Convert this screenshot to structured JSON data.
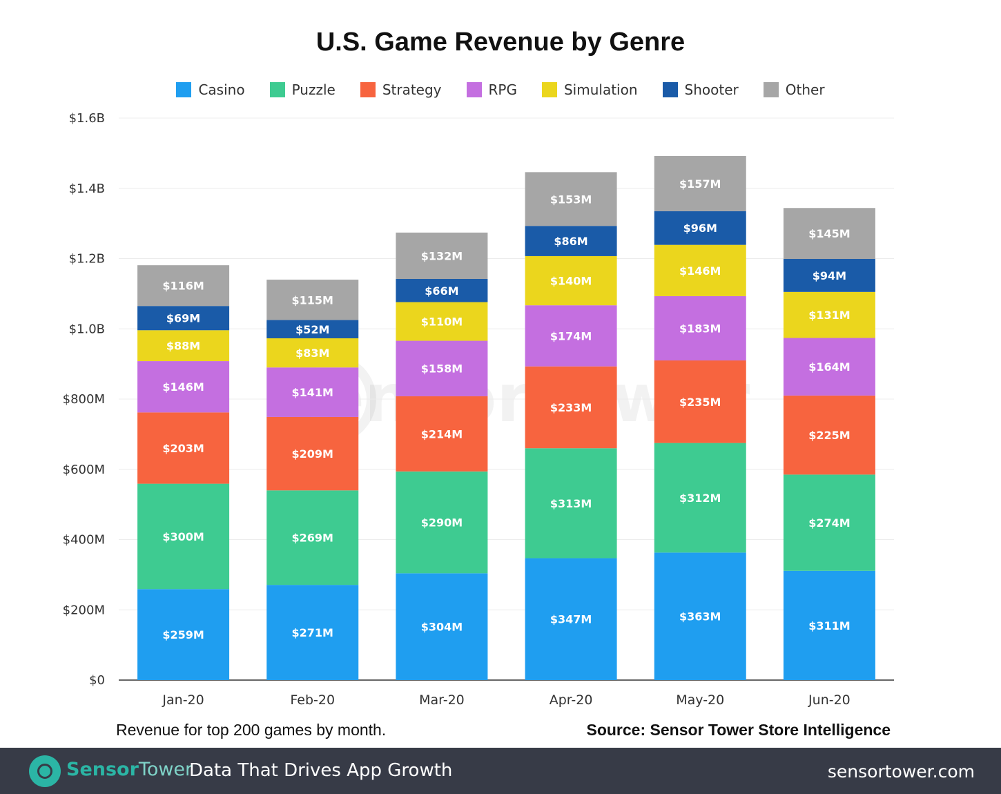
{
  "chart_data": {
    "type": "bar",
    "stacked": true,
    "title": "U.S. Game Revenue by Genre",
    "xlabel": "",
    "ylabel": "",
    "categories": [
      "Jan-20",
      "Feb-20",
      "Mar-20",
      "Apr-20",
      "May-20",
      "Jun-20"
    ],
    "ylim": [
      0,
      1600
    ],
    "y_unit": "$M",
    "yticks": [
      0,
      200,
      400,
      600,
      800,
      1000,
      1200,
      1400,
      1600
    ],
    "ytick_labels": [
      "$0",
      "$200M",
      "$400M",
      "$600M",
      "$800M",
      "$1.0B",
      "$1.2B",
      "$1.4B",
      "$1.6B"
    ],
    "grid": true,
    "legend_position": "top",
    "series": [
      {
        "name": "Casino",
        "color": "#1f9ef0",
        "values": [
          259,
          271,
          304,
          347,
          363,
          311
        ],
        "labels": [
          "$259M",
          "$271M",
          "$304M",
          "$347M",
          "$363M",
          "$311M"
        ]
      },
      {
        "name": "Puzzle",
        "color": "#3ecb91",
        "values": [
          300,
          269,
          290,
          313,
          312,
          274
        ],
        "labels": [
          "$300M",
          "$269M",
          "$290M",
          "$313M",
          "$312M",
          "$274M"
        ]
      },
      {
        "name": "Strategy",
        "color": "#f7643f",
        "values": [
          203,
          209,
          214,
          233,
          235,
          225
        ],
        "labels": [
          "$203M",
          "$209M",
          "$214M",
          "$233M",
          "$235M",
          "$225M"
        ]
      },
      {
        "name": "RPG",
        "color": "#c46fe0",
        "values": [
          146,
          141,
          158,
          174,
          183,
          164
        ],
        "labels": [
          "$146M",
          "$141M",
          "$158M",
          "$174M",
          "$183M",
          "$164M"
        ]
      },
      {
        "name": "Simulation",
        "color": "#ebd61d",
        "values": [
          88,
          83,
          110,
          140,
          146,
          131
        ],
        "labels": [
          "$88M",
          "$83M",
          "$110M",
          "$140M",
          "$146M",
          "$131M"
        ]
      },
      {
        "name": "Shooter",
        "color": "#1a5ba8",
        "values": [
          69,
          52,
          66,
          86,
          96,
          94
        ],
        "labels": [
          "$69M",
          "$52M",
          "$66M",
          "$86M",
          "$96M",
          "$94M"
        ]
      },
      {
        "name": "Other",
        "color": "#a6a6a6",
        "values": [
          116,
          115,
          132,
          153,
          157,
          145
        ],
        "labels": [
          "$116M",
          "$115M",
          "$132M",
          "$153M",
          "$157M",
          "$145M"
        ]
      }
    ],
    "annotations": {
      "note": "Revenue for top 200 games by month.",
      "source": "Source: Sensor Tower Store Intelligence"
    }
  },
  "footer": {
    "brand_part1": "Sensor",
    "brand_part2": "Tower",
    "tagline": "Data That Drives App Growth",
    "website": "sensortower.com"
  }
}
